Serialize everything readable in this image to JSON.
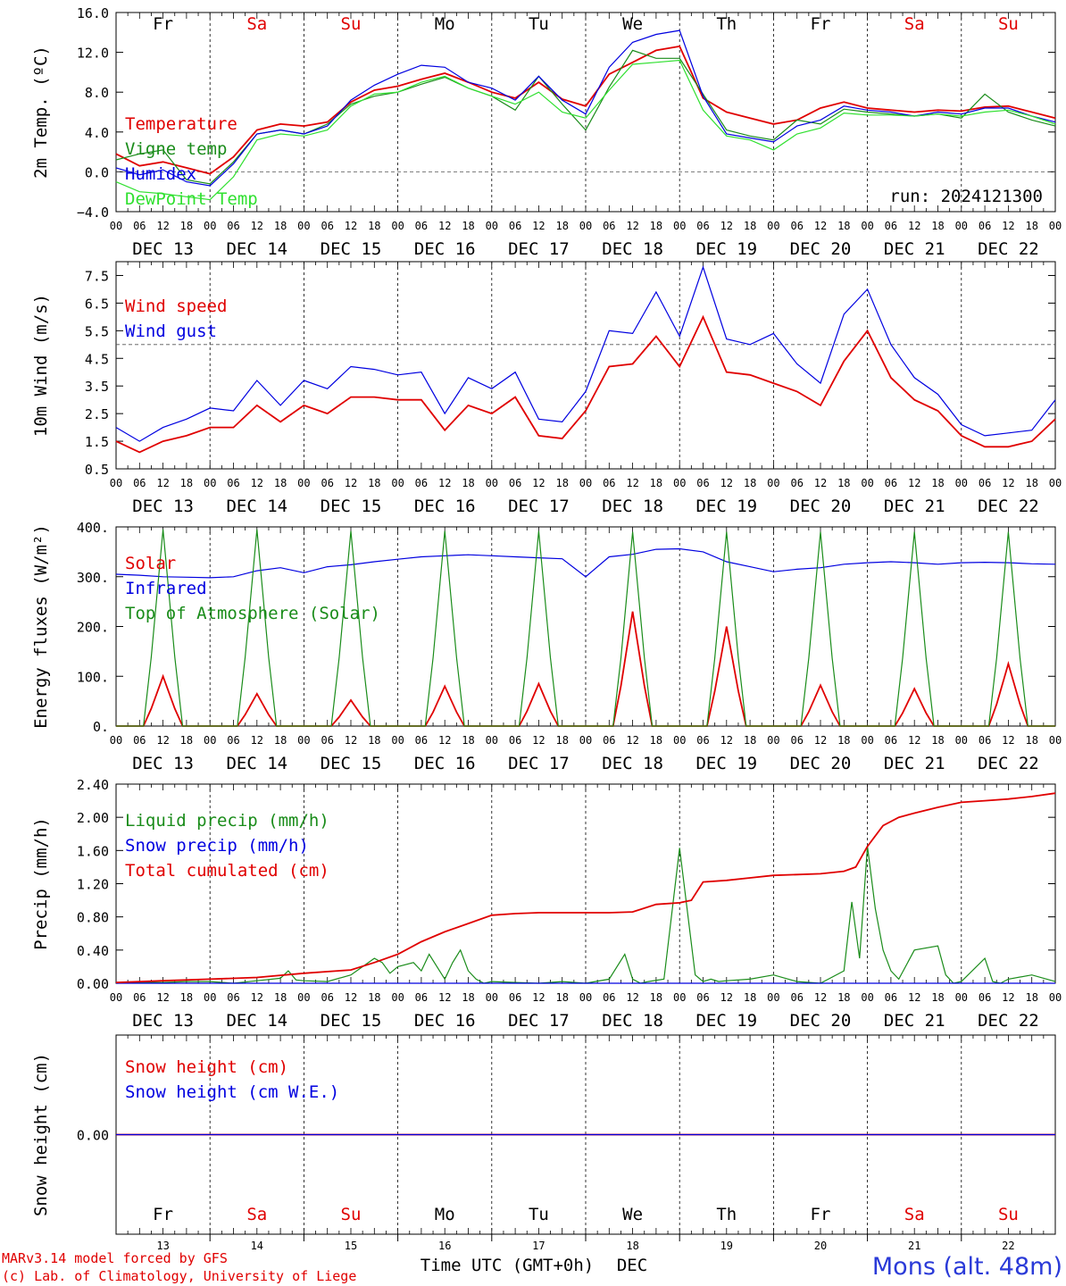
{
  "colors": {
    "red": "#e00000",
    "blue": "#0000e0",
    "green": "#1a8c1a",
    "lightgreen": "#30e030",
    "weekend": "#e00000",
    "weekday": "#000000",
    "station": "#2a3ad8"
  },
  "days": [
    {
      "abbr": "Fr",
      "date": "DEC 13",
      "num": "13",
      "weekend": false
    },
    {
      "abbr": "Sa",
      "date": "DEC 14",
      "num": "14",
      "weekend": true
    },
    {
      "abbr": "Su",
      "date": "DEC 15",
      "num": "15",
      "weekend": true
    },
    {
      "abbr": "Mo",
      "date": "DEC 16",
      "num": "16",
      "weekend": false
    },
    {
      "abbr": "Tu",
      "date": "DEC 17",
      "num": "17",
      "weekend": false
    },
    {
      "abbr": "We",
      "date": "DEC 18",
      "num": "18",
      "weekend": false
    },
    {
      "abbr": "Th",
      "date": "DEC 19",
      "num": "19",
      "weekend": false
    },
    {
      "abbr": "Fr",
      "date": "DEC 20",
      "num": "20",
      "weekend": false
    },
    {
      "abbr": "Sa",
      "date": "DEC 21",
      "num": "21",
      "weekend": true
    },
    {
      "abbr": "Su",
      "date": "DEC 22",
      "num": "22",
      "weekend": true
    }
  ],
  "hour_labels": [
    "00",
    "06",
    "12",
    "18"
  ],
  "final_hour_label": "00",
  "run_label": "run: 2024121300",
  "footer": {
    "credit_line1": "MARv3.14 model forced by GFS",
    "credit_line2": "(c) Lab. of Climatology, University of Liege",
    "axis_label": "Time UTC (GMT+0h)",
    "month": "DEC",
    "station": "Mons (alt. 48m)"
  },
  "chart_data": [
    {
      "type": "line",
      "ylabel": "2m Temp. (ºC)",
      "ylim": [
        -4,
        16
      ],
      "yticks": [
        "16.0",
        "12.0",
        "8.0",
        "4.0",
        "0.0",
        "−4.0"
      ],
      "reference_line": 0,
      "x_unit": "hours since 2024-12-13 00 UTC",
      "legend": [
        "Temperature",
        "Vigne temp",
        "Humidex",
        "DewPoint Temp"
      ],
      "series": [
        {
          "name": "Temperature",
          "color": "red",
          "x": [
            0,
            6,
            12,
            18,
            24,
            30,
            36,
            42,
            48,
            54,
            60,
            66,
            72,
            78,
            84,
            90,
            96,
            102,
            108,
            114,
            120,
            126,
            132,
            138,
            144,
            150,
            156,
            162,
            168,
            174,
            180,
            186,
            192,
            198,
            204,
            210,
            216,
            222,
            228,
            234,
            240
          ],
          "values": [
            1.8,
            0.6,
            1.0,
            0.4,
            -0.2,
            1.5,
            4.2,
            4.8,
            4.6,
            5.0,
            7.0,
            8.2,
            8.6,
            9.3,
            9.9,
            9.0,
            8.0,
            7.4,
            9.0,
            7.3,
            6.6,
            9.8,
            11.0,
            12.2,
            12.6,
            7.4,
            6.0,
            5.4,
            4.8,
            5.2,
            6.4,
            7.0,
            6.4,
            6.2,
            6.0,
            6.2,
            6.1,
            6.5,
            6.6,
            6.0,
            5.4
          ]
        },
        {
          "name": "Vigne temp",
          "color": "green",
          "x": [
            0,
            6,
            12,
            18,
            24,
            30,
            36,
            42,
            48,
            54,
            60,
            66,
            72,
            78,
            84,
            90,
            96,
            102,
            108,
            114,
            120,
            126,
            132,
            138,
            144,
            150,
            156,
            162,
            168,
            174,
            180,
            186,
            192,
            198,
            204,
            210,
            216,
            222,
            228,
            234,
            240
          ],
          "values": [
            1.2,
            1.8,
            2.2,
            -0.8,
            -1.2,
            1.0,
            3.8,
            4.2,
            3.8,
            4.8,
            6.8,
            7.6,
            8.0,
            8.8,
            9.5,
            8.4,
            7.6,
            6.2,
            9.6,
            6.8,
            4.2,
            8.5,
            12.2,
            11.4,
            11.4,
            7.8,
            4.2,
            3.6,
            3.2,
            5.2,
            4.8,
            6.3,
            6.0,
            5.8,
            5.6,
            5.8,
            5.4,
            7.8,
            6.0,
            5.2,
            4.6
          ]
        },
        {
          "name": "Humidex",
          "color": "blue",
          "x": [
            0,
            6,
            12,
            18,
            24,
            30,
            36,
            42,
            48,
            54,
            60,
            66,
            72,
            78,
            84,
            90,
            96,
            102,
            108,
            114,
            120,
            126,
            132,
            138,
            144,
            150,
            156,
            162,
            168,
            174,
            180,
            186,
            192,
            198,
            204,
            210,
            216,
            222,
            228,
            234,
            240
          ],
          "values": [
            0.4,
            -0.3,
            0.2,
            -1.0,
            -1.4,
            0.8,
            3.8,
            4.2,
            3.8,
            4.6,
            7.2,
            8.7,
            9.8,
            10.7,
            10.5,
            9.0,
            8.4,
            7.2,
            9.6,
            7.2,
            5.8,
            10.5,
            13.0,
            13.8,
            14.2,
            7.6,
            3.8,
            3.4,
            3.0,
            4.6,
            5.2,
            6.6,
            6.2,
            6.0,
            5.6,
            6.0,
            5.8,
            6.4,
            6.4,
            5.6,
            5.0
          ]
        },
        {
          "name": "DewPoint Temp",
          "color": "lightgreen",
          "x": [
            0,
            6,
            12,
            18,
            24,
            30,
            36,
            42,
            48,
            54,
            60,
            66,
            72,
            78,
            84,
            90,
            96,
            102,
            108,
            114,
            120,
            126,
            132,
            138,
            144,
            150,
            156,
            162,
            168,
            174,
            180,
            186,
            192,
            198,
            204,
            210,
            216,
            222,
            228,
            234,
            240
          ],
          "values": [
            -1.0,
            -2.0,
            -2.2,
            -2.5,
            -2.8,
            -0.5,
            3.2,
            3.8,
            3.6,
            4.2,
            6.6,
            7.8,
            8.0,
            9.0,
            9.6,
            8.4,
            7.6,
            6.8,
            8.0,
            6.0,
            5.4,
            8.2,
            10.8,
            11.0,
            11.2,
            6.2,
            3.6,
            3.2,
            2.2,
            3.8,
            4.4,
            5.9,
            5.7,
            5.7,
            5.6,
            5.8,
            5.6,
            6.0,
            6.2,
            5.6,
            4.8
          ]
        }
      ]
    },
    {
      "type": "line",
      "ylabel": "10m Wind (m/s)",
      "ylim": [
        0.5,
        8.0
      ],
      "yticks": [
        "7.5",
        "6.5",
        "5.5",
        "4.5",
        "3.5",
        "2.5",
        "1.5",
        "0.5"
      ],
      "reference_line": 5.0,
      "x_unit": "hours since 2024-12-13 00 UTC",
      "legend": [
        "Wind speed",
        "Wind gust"
      ],
      "series": [
        {
          "name": "Wind speed",
          "color": "red",
          "x": [
            0,
            6,
            12,
            18,
            24,
            30,
            36,
            42,
            48,
            54,
            60,
            66,
            72,
            78,
            84,
            90,
            96,
            102,
            108,
            114,
            120,
            126,
            132,
            138,
            144,
            150,
            156,
            162,
            168,
            174,
            180,
            186,
            192,
            198,
            204,
            210,
            216,
            222,
            228,
            234,
            240
          ],
          "values": [
            1.5,
            1.1,
            1.5,
            1.7,
            2.0,
            2.0,
            2.8,
            2.2,
            2.8,
            2.5,
            3.1,
            3.1,
            3.0,
            3.0,
            1.9,
            2.8,
            2.5,
            3.1,
            1.7,
            1.6,
            2.6,
            4.2,
            4.3,
            5.3,
            4.2,
            6.0,
            4.0,
            3.9,
            3.6,
            3.3,
            2.8,
            4.4,
            5.5,
            3.8,
            3.0,
            2.6,
            1.7,
            1.3,
            1.3,
            1.5,
            2.3
          ]
        },
        {
          "name": "Wind gust",
          "color": "blue",
          "x": [
            0,
            6,
            12,
            18,
            24,
            30,
            36,
            42,
            48,
            54,
            60,
            66,
            72,
            78,
            84,
            90,
            96,
            102,
            108,
            114,
            120,
            126,
            132,
            138,
            144,
            150,
            156,
            162,
            168,
            174,
            180,
            186,
            192,
            198,
            204,
            210,
            216,
            222,
            228,
            234,
            240
          ],
          "values": [
            2.0,
            1.5,
            2.0,
            2.3,
            2.7,
            2.6,
            3.7,
            2.8,
            3.7,
            3.4,
            4.2,
            4.1,
            3.9,
            4.0,
            2.5,
            3.8,
            3.4,
            4.0,
            2.3,
            2.2,
            3.3,
            5.5,
            5.4,
            6.9,
            5.3,
            7.8,
            5.2,
            5.0,
            5.4,
            4.3,
            3.6,
            6.1,
            7.0,
            5.0,
            3.8,
            3.2,
            2.1,
            1.7,
            1.8,
            1.9,
            3.0
          ]
        }
      ]
    },
    {
      "type": "line",
      "ylabel": "Energy fluxes (W/m²)",
      "ylim": [
        0,
        400
      ],
      "yticks": [
        "400.",
        "300.",
        "200.",
        "100.",
        "0."
      ],
      "x_unit": "hours since 2024-12-13 00 UTC",
      "legend": [
        "Solar",
        "Infrared",
        "Top of Atmosphere (Solar)"
      ],
      "series": [
        {
          "name": "Solar",
          "color": "red",
          "daily_peak_hour": 12,
          "daily_peaks": [
            100,
            65,
            52,
            80,
            85,
            230,
            200,
            82,
            75,
            125
          ]
        },
        {
          "name": "Infrared",
          "color": "blue",
          "x": [
            0,
            6,
            12,
            18,
            24,
            30,
            36,
            42,
            48,
            54,
            60,
            66,
            72,
            78,
            84,
            90,
            96,
            102,
            108,
            114,
            120,
            126,
            132,
            138,
            144,
            150,
            156,
            162,
            168,
            174,
            180,
            186,
            192,
            198,
            204,
            210,
            216,
            222,
            228,
            234,
            240
          ],
          "values": [
            305,
            303,
            300,
            299,
            298,
            300,
            312,
            318,
            308,
            320,
            324,
            330,
            335,
            340,
            342,
            344,
            342,
            340,
            338,
            336,
            300,
            340,
            345,
            355,
            356,
            350,
            330,
            320,
            310,
            315,
            318,
            325,
            328,
            330,
            328,
            325,
            328,
            329,
            328,
            326,
            325
          ]
        },
        {
          "name": "Top of Atmosphere (Solar)",
          "color": "green",
          "daily_peak_hour": 12,
          "daily_peaks": [
            395,
            395,
            392,
            392,
            392,
            390,
            390,
            390,
            390,
            390
          ]
        }
      ]
    },
    {
      "type": "line",
      "ylabel": "Precip (mm/h)",
      "ylim": [
        0,
        2.4
      ],
      "yticks": [
        "2.40",
        "2.00",
        "1.60",
        "1.20",
        "0.80",
        "0.40",
        "0.00"
      ],
      "x_unit": "hours since 2024-12-13 00 UTC",
      "legend": [
        "Liquid precip (mm/h)",
        "Snow precip (mm/h)",
        "Total cumulated (cm)"
      ],
      "series": [
        {
          "name": "Liquid precip (mm/h)",
          "color": "green",
          "x": [
            0,
            6,
            12,
            18,
            24,
            30,
            36,
            42,
            44,
            46,
            48,
            54,
            60,
            66,
            68,
            70,
            72,
            76,
            78,
            80,
            84,
            86,
            88,
            90,
            92,
            94,
            96,
            102,
            108,
            114,
            120,
            126,
            130,
            132,
            134,
            136,
            140,
            144,
            148,
            150,
            152,
            154,
            156,
            162,
            168,
            174,
            180,
            186,
            188,
            190,
            192,
            194,
            196,
            198,
            200,
            204,
            210,
            212,
            214,
            216,
            222,
            224,
            226,
            228,
            234,
            240
          ],
          "values": [
            0,
            0.01,
            0.01,
            0.02,
            0.02,
            0,
            0.03,
            0.06,
            0.15,
            0.04,
            0.03,
            0.02,
            0.1,
            0.3,
            0.25,
            0.12,
            0.2,
            0.25,
            0.15,
            0.35,
            0.05,
            0.25,
            0.4,
            0.15,
            0.05,
            0,
            0.02,
            0.01,
            0,
            0.02,
            0,
            0.05,
            0.35,
            0.05,
            0,
            0.02,
            0.05,
            1.63,
            0.1,
            0.02,
            0.05,
            0.02,
            0.03,
            0.05,
            0.1,
            0.02,
            0,
            0.15,
            0.98,
            0.3,
            1.65,
            0.9,
            0.4,
            0.15,
            0.05,
            0.4,
            0.45,
            0.1,
            0,
            0.02,
            0.3,
            0.02,
            0,
            0.05,
            0.1,
            0.02
          ]
        },
        {
          "name": "Snow precip (mm/h)",
          "color": "blue",
          "x": [
            0,
            240
          ],
          "values": [
            0,
            0
          ]
        },
        {
          "name": "Total cumulated (cm)",
          "color": "red",
          "x": [
            0,
            12,
            24,
            36,
            48,
            60,
            66,
            72,
            78,
            84,
            90,
            96,
            102,
            108,
            114,
            120,
            126,
            132,
            138,
            144,
            147,
            150,
            156,
            162,
            168,
            174,
            180,
            186,
            189,
            192,
            196,
            200,
            204,
            210,
            216,
            222,
            228,
            234,
            240
          ],
          "values": [
            0.01,
            0.03,
            0.05,
            0.07,
            0.12,
            0.16,
            0.25,
            0.35,
            0.5,
            0.62,
            0.72,
            0.82,
            0.84,
            0.85,
            0.85,
            0.85,
            0.85,
            0.86,
            0.95,
            0.97,
            1.0,
            1.22,
            1.24,
            1.27,
            1.3,
            1.31,
            1.32,
            1.35,
            1.4,
            1.65,
            1.9,
            2.0,
            2.05,
            2.12,
            2.18,
            2.2,
            2.22,
            2.25,
            2.29
          ]
        }
      ]
    },
    {
      "type": "line",
      "ylabel": "Snow height (cm)",
      "ylim": [
        -1,
        1
      ],
      "yticks": [
        "0.00"
      ],
      "x_unit": "hours since 2024-12-13 00 UTC",
      "legend": [
        "Snow height (cm)",
        "Snow height (cm W.E.)"
      ],
      "series": [
        {
          "name": "Snow height (cm)",
          "color": "red",
          "x": [
            0,
            240
          ],
          "values": [
            0,
            0
          ]
        },
        {
          "name": "Snow height (cm W.E.)",
          "color": "blue",
          "x": [
            0,
            240
          ],
          "values": [
            0,
            0
          ]
        }
      ]
    }
  ]
}
